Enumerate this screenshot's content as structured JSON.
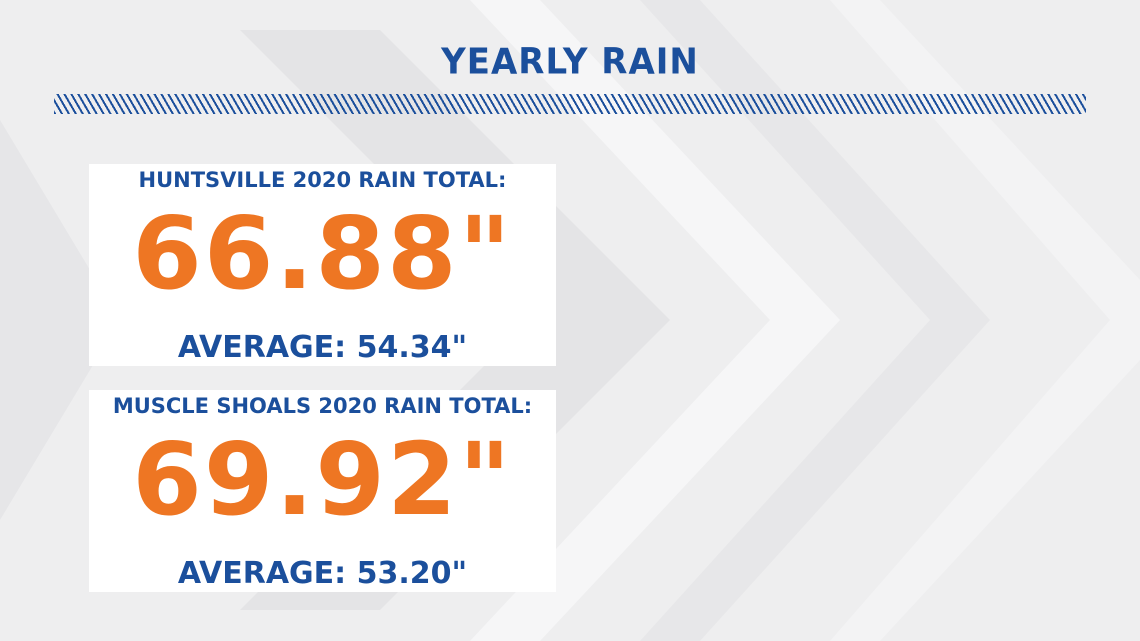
{
  "title": "YEARLY RAIN",
  "colors": {
    "accent_blue": "#1b4f9c",
    "accent_orange": "#ee7623",
    "background": "#eeeeef"
  },
  "cards": [
    {
      "label": "HUNTSVILLE 2020 RAIN TOTAL:",
      "value": "66.88\"",
      "average": "AVERAGE: 54.34\""
    },
    {
      "label": "MUSCLE SHOALS 2020 RAIN TOTAL:",
      "value": "69.92\"",
      "average": "AVERAGE: 53.20\""
    }
  ]
}
